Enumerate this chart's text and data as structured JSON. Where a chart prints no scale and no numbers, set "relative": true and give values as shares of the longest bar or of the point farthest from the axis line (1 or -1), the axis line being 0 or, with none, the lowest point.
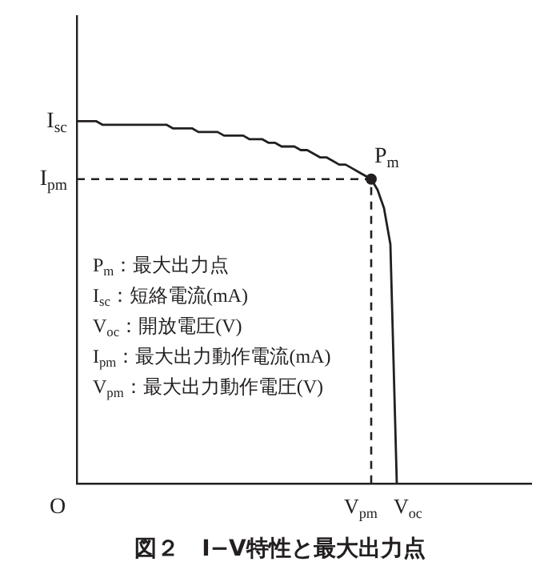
{
  "chart_data": {
    "type": "line",
    "title": "図２　I−V特性と最大出力点",
    "relative": true,
    "categories": [
      null,
      null,
      null,
      null,
      null,
      null,
      null,
      null,
      null,
      null,
      null,
      null,
      null,
      null,
      null,
      null,
      null,
      null,
      null,
      null,
      null,
      null,
      null,
      null,
      null,
      null,
      null,
      null,
      null,
      null,
      null,
      null,
      null,
      null,
      null,
      null,
      null,
      null,
      null,
      null,
      null,
      null,
      null,
      null,
      null,
      null,
      null,
      null,
      null,
      null,
      null,
      null,
      null,
      null,
      null,
      null,
      null,
      null,
      null,
      null,
      null,
      null,
      null,
      null,
      null,
      null,
      null,
      null,
      null,
      null,
      null,
      null
    ],
    "series": [
      {
        "color": "#231f20",
        "line_style": "solid",
        "values": [
          1.0,
          1.0,
          1.0,
          1.0,
          0.99,
          0.99,
          0.99,
          0.99,
          0.99,
          0.99,
          0.99,
          0.99,
          0.99,
          0.99,
          0.99,
          0.98,
          0.98,
          0.98,
          0.98,
          0.97,
          0.97,
          0.97,
          0.97,
          0.96,
          0.96,
          0.96,
          0.96,
          0.95,
          0.95,
          0.95,
          0.94,
          0.94,
          0.93,
          0.93,
          0.93,
          0.92,
          0.92,
          0.91,
          0.9,
          0.9,
          0.89,
          0.88,
          0.88,
          0.87,
          0.86,
          0.85,
          0.84,
          0.81,
          0.76,
          0.66,
          0,
          null,
          null,
          null,
          null,
          null,
          null,
          null,
          null,
          null,
          null,
          null,
          null,
          null,
          null,
          null,
          null,
          null,
          null,
          null,
          null,
          null
        ]
      }
    ],
    "ref_lines": [
      {
        "axis": "y",
        "value": 0.84,
        "label": "I$_{pm}$",
        "color": "#231f20",
        "line_style": "dashed"
      }
    ],
    "annotations": [
      "I$_{sc}$",
      "O",
      "V$_{pm}$",
      "V$_{oc}$",
      "P$_{m}$",
      "P$_{m}$：最大出力点",
      "I$_{sc}$：短絡電流(mA)",
      "V$_{oc}$：開放電圧(V)",
      "I$_{pm}$：最大出力動作電流(mA)",
      "V$_{pm}$：最大出力動作電圧(V)"
    ]
  }
}
